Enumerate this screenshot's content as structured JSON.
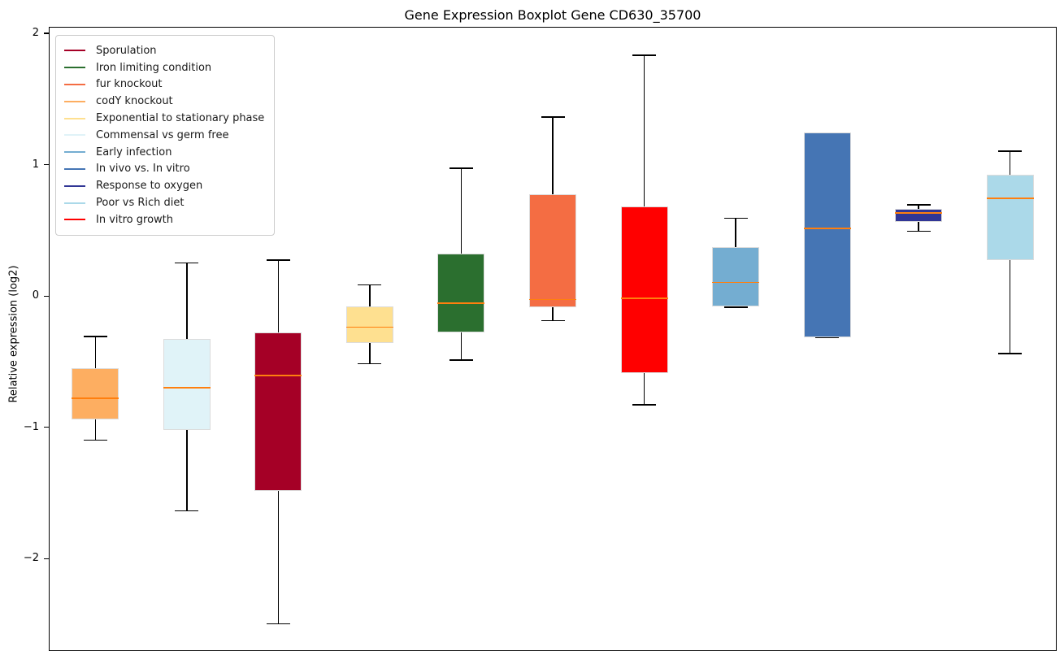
{
  "title": "Gene Expression Boxplot Gene CD630_35700",
  "y_axis": {
    "label": "Relative expression (log2)",
    "ticks": [
      {
        "label": "2",
        "value": 2
      },
      {
        "label": "1",
        "value": 1
      },
      {
        "label": "0",
        "value": 0
      },
      {
        "label": "−1",
        "value": -1
      },
      {
        "label": "−2",
        "value": -2
      }
    ]
  },
  "legend": {
    "items": [
      {
        "label": "Sporulation",
        "color": "#a50026"
      },
      {
        "label": "Iron limiting condition",
        "color": "#2b6f2f"
      },
      {
        "label": "fur knockout",
        "color": "#f46d43"
      },
      {
        "label": "codY knockout",
        "color": "#fdae61"
      },
      {
        "label": "Exponential to stationary phase",
        "color": "#fee090"
      },
      {
        "label": "Commensal vs germ free",
        "color": "#e0f3f8"
      },
      {
        "label": "Early infection",
        "color": "#74add1"
      },
      {
        "label": "In vivo vs. In vitro",
        "color": "#4575b4"
      },
      {
        "label": "Response to oxygen",
        "color": "#313695"
      },
      {
        "label": "Poor vs Rich diet",
        "color": "#abd9e9"
      },
      {
        "label": "In vitro growth",
        "color": "#ff0000"
      }
    ]
  },
  "chart_data": {
    "type": "boxplot",
    "title": "Gene Expression Boxplot Gene CD630_35700",
    "xlabel": "",
    "ylabel": "Relative expression (log2)",
    "ylim": [
      -2.69,
      2.05
    ],
    "grid": false,
    "legend_position": "upper left",
    "median_color": "#ff7f0e",
    "whisker_color": "#000000",
    "series": [
      {
        "name": "codY knockout",
        "color": "#fdae61",
        "whisker_low": -1.09,
        "q1": -0.93,
        "median": -0.77,
        "q3": -0.54,
        "whisker_high": -0.3
      },
      {
        "name": "Commensal vs germ free",
        "color": "#e0f3f8",
        "whisker_low": -1.63,
        "q1": -1.01,
        "median": -0.69,
        "q3": -0.32,
        "whisker_high": 0.26
      },
      {
        "name": "Sporulation",
        "color": "#a50026",
        "whisker_low": -2.49,
        "q1": -1.48,
        "median": -0.6,
        "q3": -0.27,
        "whisker_high": 0.28
      },
      {
        "name": "Exponential to stationary phase",
        "color": "#fee090",
        "whisker_low": -0.51,
        "q1": -0.35,
        "median": -0.23,
        "q3": -0.07,
        "whisker_high": 0.09
      },
      {
        "name": "Iron limiting condition",
        "color": "#2b6f2f",
        "whisker_low": -0.48,
        "q1": -0.27,
        "median": -0.05,
        "q3": 0.33,
        "whisker_high": 0.98
      },
      {
        "name": "fur knockout",
        "color": "#f46d43",
        "whisker_low": -0.18,
        "q1": -0.08,
        "median": -0.02,
        "q3": 0.78,
        "whisker_high": 1.37
      },
      {
        "name": "In vitro growth",
        "color": "#ff0000",
        "whisker_low": -0.82,
        "q1": -0.58,
        "median": -0.01,
        "q3": 0.69,
        "whisker_high": 1.84
      },
      {
        "name": "Early infection",
        "color": "#74add1",
        "whisker_low": -0.08,
        "q1": -0.07,
        "median": 0.11,
        "q3": 0.38,
        "whisker_high": 0.6
      },
      {
        "name": "In vivo vs. In vitro",
        "color": "#4575b4",
        "whisker_low": -0.31,
        "q1": -0.31,
        "median": 0.52,
        "q3": 1.25,
        "whisker_high": 1.25
      },
      {
        "name": "Response to oxygen",
        "color": "#313695",
        "whisker_low": 0.5,
        "q1": 0.57,
        "median": 0.64,
        "q3": 0.67,
        "whisker_high": 0.7
      },
      {
        "name": "Poor vs Rich diet",
        "color": "#abd9e9",
        "whisker_low": -0.43,
        "q1": 0.28,
        "median": 0.75,
        "q3": 0.93,
        "whisker_high": 1.11
      }
    ]
  }
}
